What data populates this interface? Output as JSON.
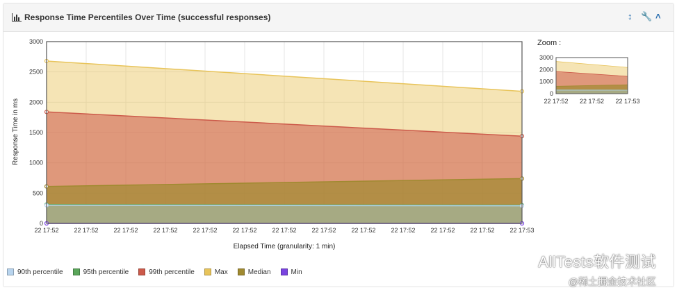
{
  "panel": {
    "title": "Response Time Percentiles Over Time (successful responses)",
    "icons": [
      "bar-chart-icon",
      "vertical-arrows-icon",
      "wrench-icon",
      "chevron-up-icon"
    ]
  },
  "chart_data": {
    "type": "area",
    "x": [
      "22 17:52",
      "22 17:53"
    ],
    "x_ticks": [
      "22 17:52",
      "22 17:52",
      "22 17:52",
      "22 17:52",
      "22 17:52",
      "22 17:52",
      "22 17:52",
      "22 17:52",
      "22 17:52",
      "22 17:52",
      "22 17:52",
      "22 17:52",
      "22 17:53"
    ],
    "xlabel": "Elapsed Time (granularity: 1 min)",
    "ylabel": "Response Time in ms",
    "ylim": [
      0,
      3000
    ],
    "yticks": [
      0,
      500,
      1000,
      1500,
      2000,
      2500,
      3000
    ],
    "grid": true,
    "legend_position": "bottom",
    "series": [
      {
        "name": "90th percentile",
        "color": "#b8d4ee",
        "values": [
          300,
          290
        ]
      },
      {
        "name": "95th percentile",
        "color": "#5aa65a",
        "values": [
          310,
          300
        ]
      },
      {
        "name": "99th percentile",
        "color": "#cc5a4a",
        "values": [
          1840,
          1440
        ]
      },
      {
        "name": "Max",
        "color": "#e8c45a",
        "values": [
          2680,
          2180
        ]
      },
      {
        "name": "Median",
        "color": "#a08a30",
        "values": [
          610,
          740
        ]
      },
      {
        "name": "Min",
        "color": "#7a44e0",
        "values": [
          0,
          0
        ]
      }
    ],
    "zoom": {
      "label": "Zoom :",
      "yticks": [
        0,
        1000,
        2000,
        3000
      ],
      "xticks": [
        "22 17:52",
        "22 17:52",
        "22 17:53"
      ]
    }
  },
  "watermark": {
    "line1": "AllTests软件测试",
    "line2": "@稀土掘金技术社区"
  }
}
